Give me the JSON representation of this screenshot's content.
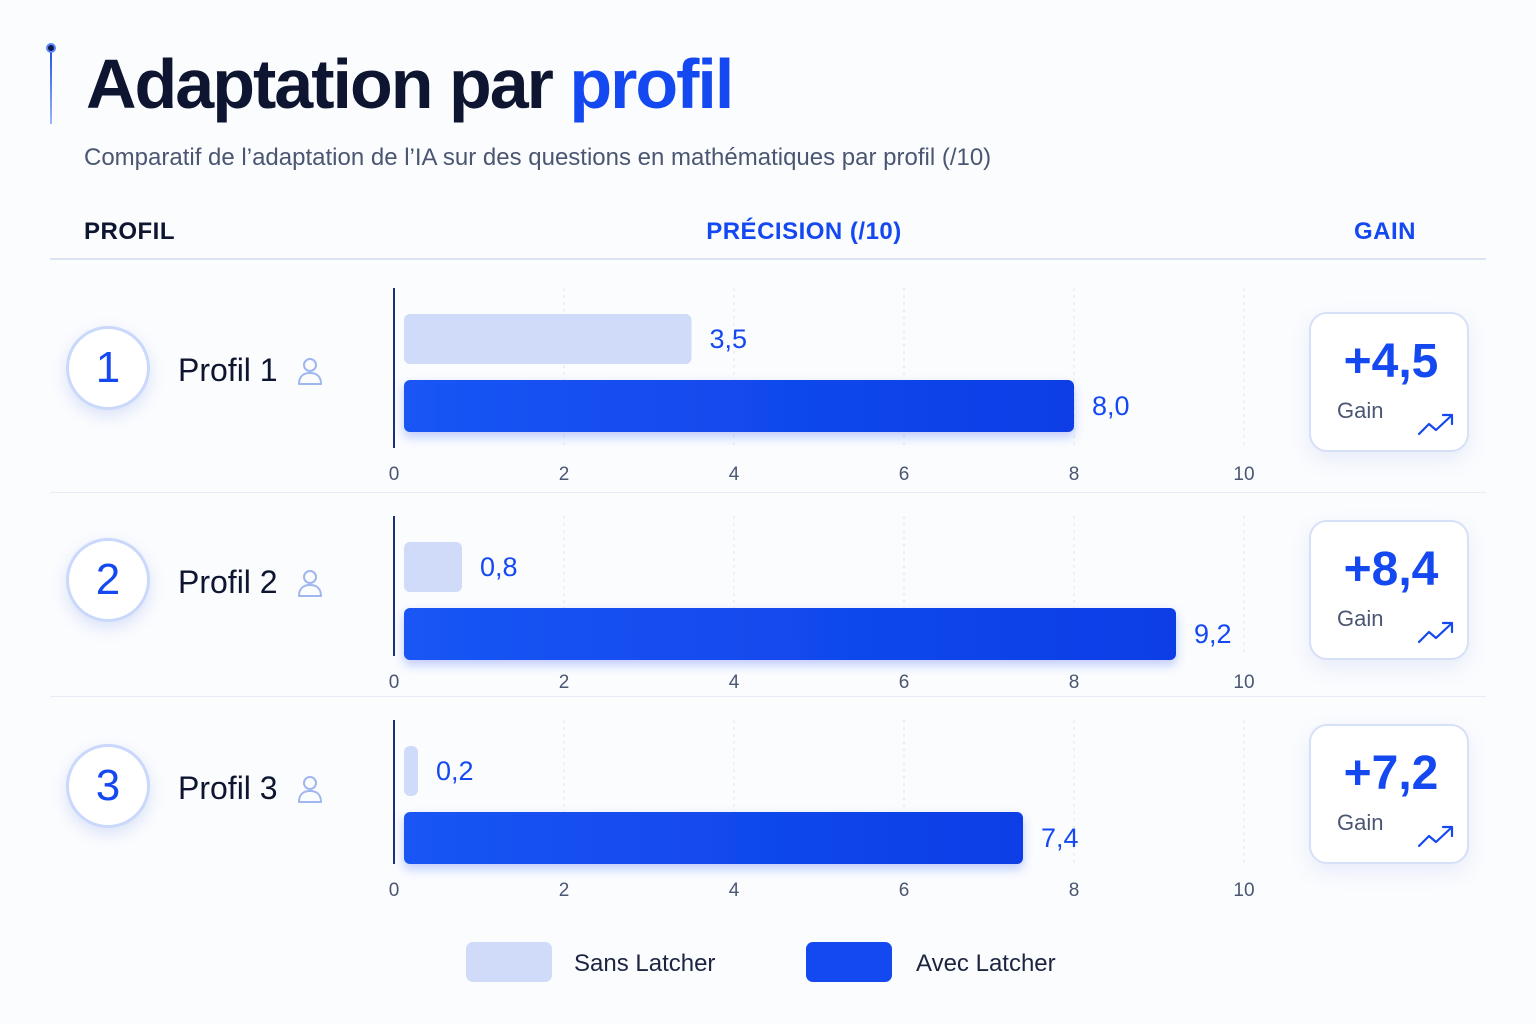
{
  "header": {
    "title_part1": "Adaptation par",
    "title_part2": "profil",
    "subtitle": "Comparatif de l’adaptation de l’IA sur des questions en mathématiques par profil (/10)"
  },
  "columns": {
    "profil": "PROFIL",
    "precision": "PRÉCISION (/10)",
    "gain": "GAIN"
  },
  "colors": {
    "sans": "#cfdbf8",
    "avec": "#1448f0",
    "accent": "#1448f0"
  },
  "icons": {
    "profile": "user-icon",
    "gain": "trend-up-icon"
  },
  "chart_data": {
    "type": "bar",
    "orientation": "horizontal",
    "title": "Adaptation par profil",
    "subtitle": "Comparatif de l’adaptation de l’IA sur des questions en mathématiques par profil (/10)",
    "xlabel": "PRÉCISION (/10)",
    "xlim": [
      0,
      10
    ],
    "xticks": [
      "0",
      "2",
      "4",
      "6",
      "8",
      "10"
    ],
    "grid": true,
    "legend_position": "bottom",
    "legend": [
      "Sans Latcher",
      "Avec Latcher"
    ],
    "categories": [
      "Profil 1",
      "Profil 2",
      "Profil 3"
    ],
    "series": [
      {
        "name": "Sans Latcher",
        "values": [
          3.5,
          0.8,
          0.2
        ],
        "labels": [
          "3,5",
          "0,8",
          "0,2"
        ]
      },
      {
        "name": "Avec Latcher",
        "values": [
          8.0,
          9.2,
          7.4
        ],
        "labels": [
          "8,0",
          "9,2",
          "7,4"
        ]
      }
    ]
  },
  "profiles": [
    {
      "number": "1",
      "name": "Profil 1",
      "gain": "+4,5",
      "gain_label": "Gain"
    },
    {
      "number": "2",
      "name": "Profil 2",
      "gain": "+8,4",
      "gain_label": "Gain"
    },
    {
      "number": "3",
      "name": "Profil 3",
      "gain": "+7,2",
      "gain_label": "Gain"
    }
  ],
  "legend": {
    "sans": "Sans Latcher",
    "avec": "Avec Latcher"
  }
}
